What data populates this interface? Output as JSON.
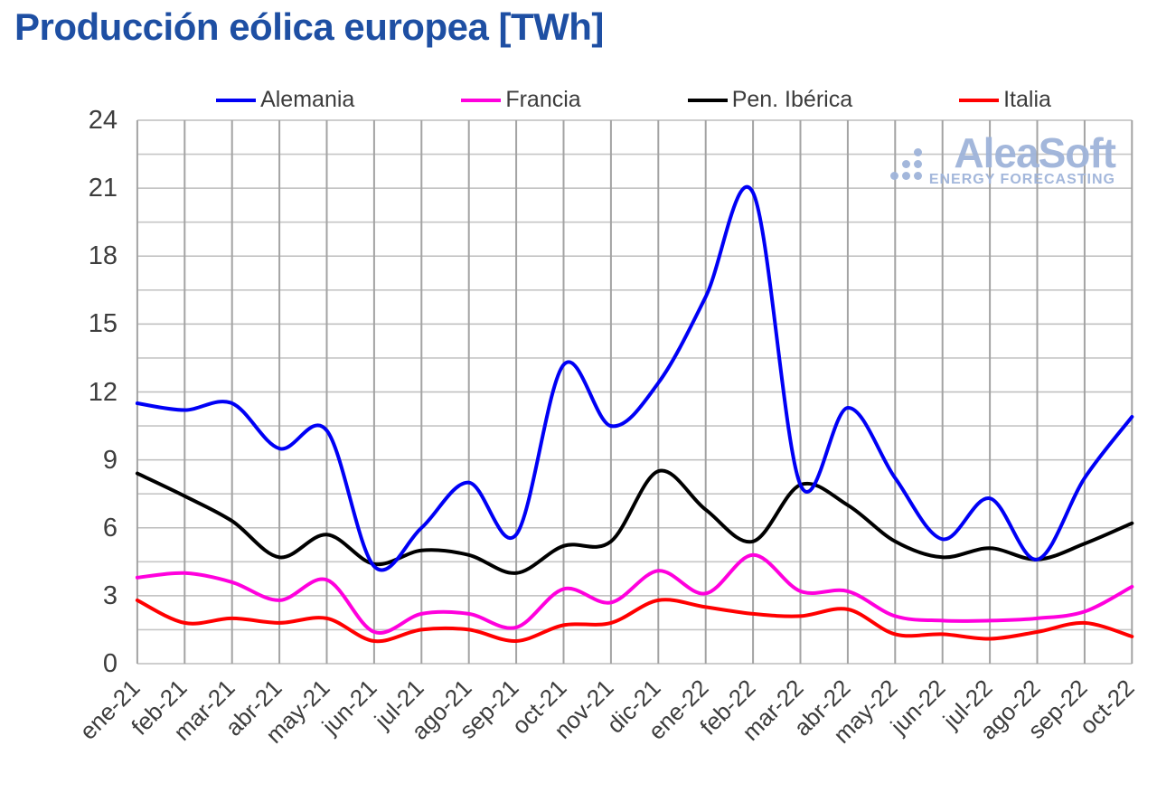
{
  "header": {
    "title": "Producción eólica europea [TWh]",
    "title_color": "#1e4fa3"
  },
  "watermark": {
    "brand": "AleaSoft",
    "tagline": "ENERGY FORECASTING",
    "color": "#9fb4da"
  },
  "axes": {
    "y_tick_labels": [
      "24",
      "21",
      "18",
      "15",
      "12",
      "9",
      "6",
      "3",
      "0"
    ],
    "x_tick_labels": [
      "ene-21",
      "feb-21",
      "mar-21",
      "abr-21",
      "may-21",
      "jun-21",
      "jul-21",
      "ago-21",
      "sep-21",
      "oct-21",
      "nov-21",
      "dic-21",
      "ene-22",
      "feb-22",
      "mar-22",
      "abr-22",
      "may-22",
      "jun-22",
      "jul-22",
      "ago-22",
      "sep-22",
      "oct-22"
    ],
    "grid_color_vertical": "#a3a3a3",
    "grid_color_horizontal": "#c6c6c6"
  },
  "chart_data": {
    "type": "line",
    "title": "Producción eólica europea [TWh]",
    "xlabel": "",
    "ylabel": "TWh",
    "ylim": [
      0,
      24
    ],
    "y_ticks": [
      0,
      3,
      6,
      9,
      12,
      15,
      18,
      21,
      24
    ],
    "y_minor_step": 1.5,
    "grid": true,
    "legend_position": "top",
    "line_style": "smooth",
    "categories": [
      "ene-21",
      "feb-21",
      "mar-21",
      "abr-21",
      "may-21",
      "jun-21",
      "jul-21",
      "ago-21",
      "sep-21",
      "oct-21",
      "nov-21",
      "dic-21",
      "ene-22",
      "feb-22",
      "mar-22",
      "abr-22",
      "may-22",
      "jun-22",
      "jul-22",
      "ago-22",
      "sep-22",
      "oct-22"
    ],
    "series": [
      {
        "name": "Alemania",
        "color": "#0000f5",
        "values": [
          11.5,
          11.2,
          11.5,
          9.5,
          10.3,
          4.3,
          6.0,
          8.0,
          5.7,
          13.2,
          10.5,
          12.4,
          16.2,
          20.8,
          7.9,
          11.3,
          8.2,
          5.5,
          7.3,
          4.6,
          8.2,
          10.9
        ]
      },
      {
        "name": "Francia",
        "color": "#ff00dd",
        "values": [
          3.8,
          4.0,
          3.6,
          2.8,
          3.7,
          1.4,
          2.2,
          2.2,
          1.6,
          3.3,
          2.7,
          4.1,
          3.1,
          4.8,
          3.2,
          3.2,
          2.1,
          1.9,
          1.9,
          2.0,
          2.3,
          3.4
        ]
      },
      {
        "name": "Pen. Ibérica",
        "color": "#000000",
        "values": [
          8.4,
          7.4,
          6.3,
          4.7,
          5.7,
          4.4,
          5.0,
          4.8,
          4.0,
          5.2,
          5.4,
          8.5,
          6.8,
          5.4,
          7.9,
          7.0,
          5.4,
          4.7,
          5.1,
          4.6,
          5.3,
          6.2
        ]
      },
      {
        "name": "Italia",
        "color": "#ff0000",
        "values": [
          2.8,
          1.8,
          2.0,
          1.8,
          2.0,
          1.0,
          1.5,
          1.5,
          1.0,
          1.7,
          1.8,
          2.8,
          2.5,
          2.2,
          2.1,
          2.4,
          1.3,
          1.3,
          1.1,
          1.4,
          1.8,
          1.2
        ]
      }
    ]
  }
}
